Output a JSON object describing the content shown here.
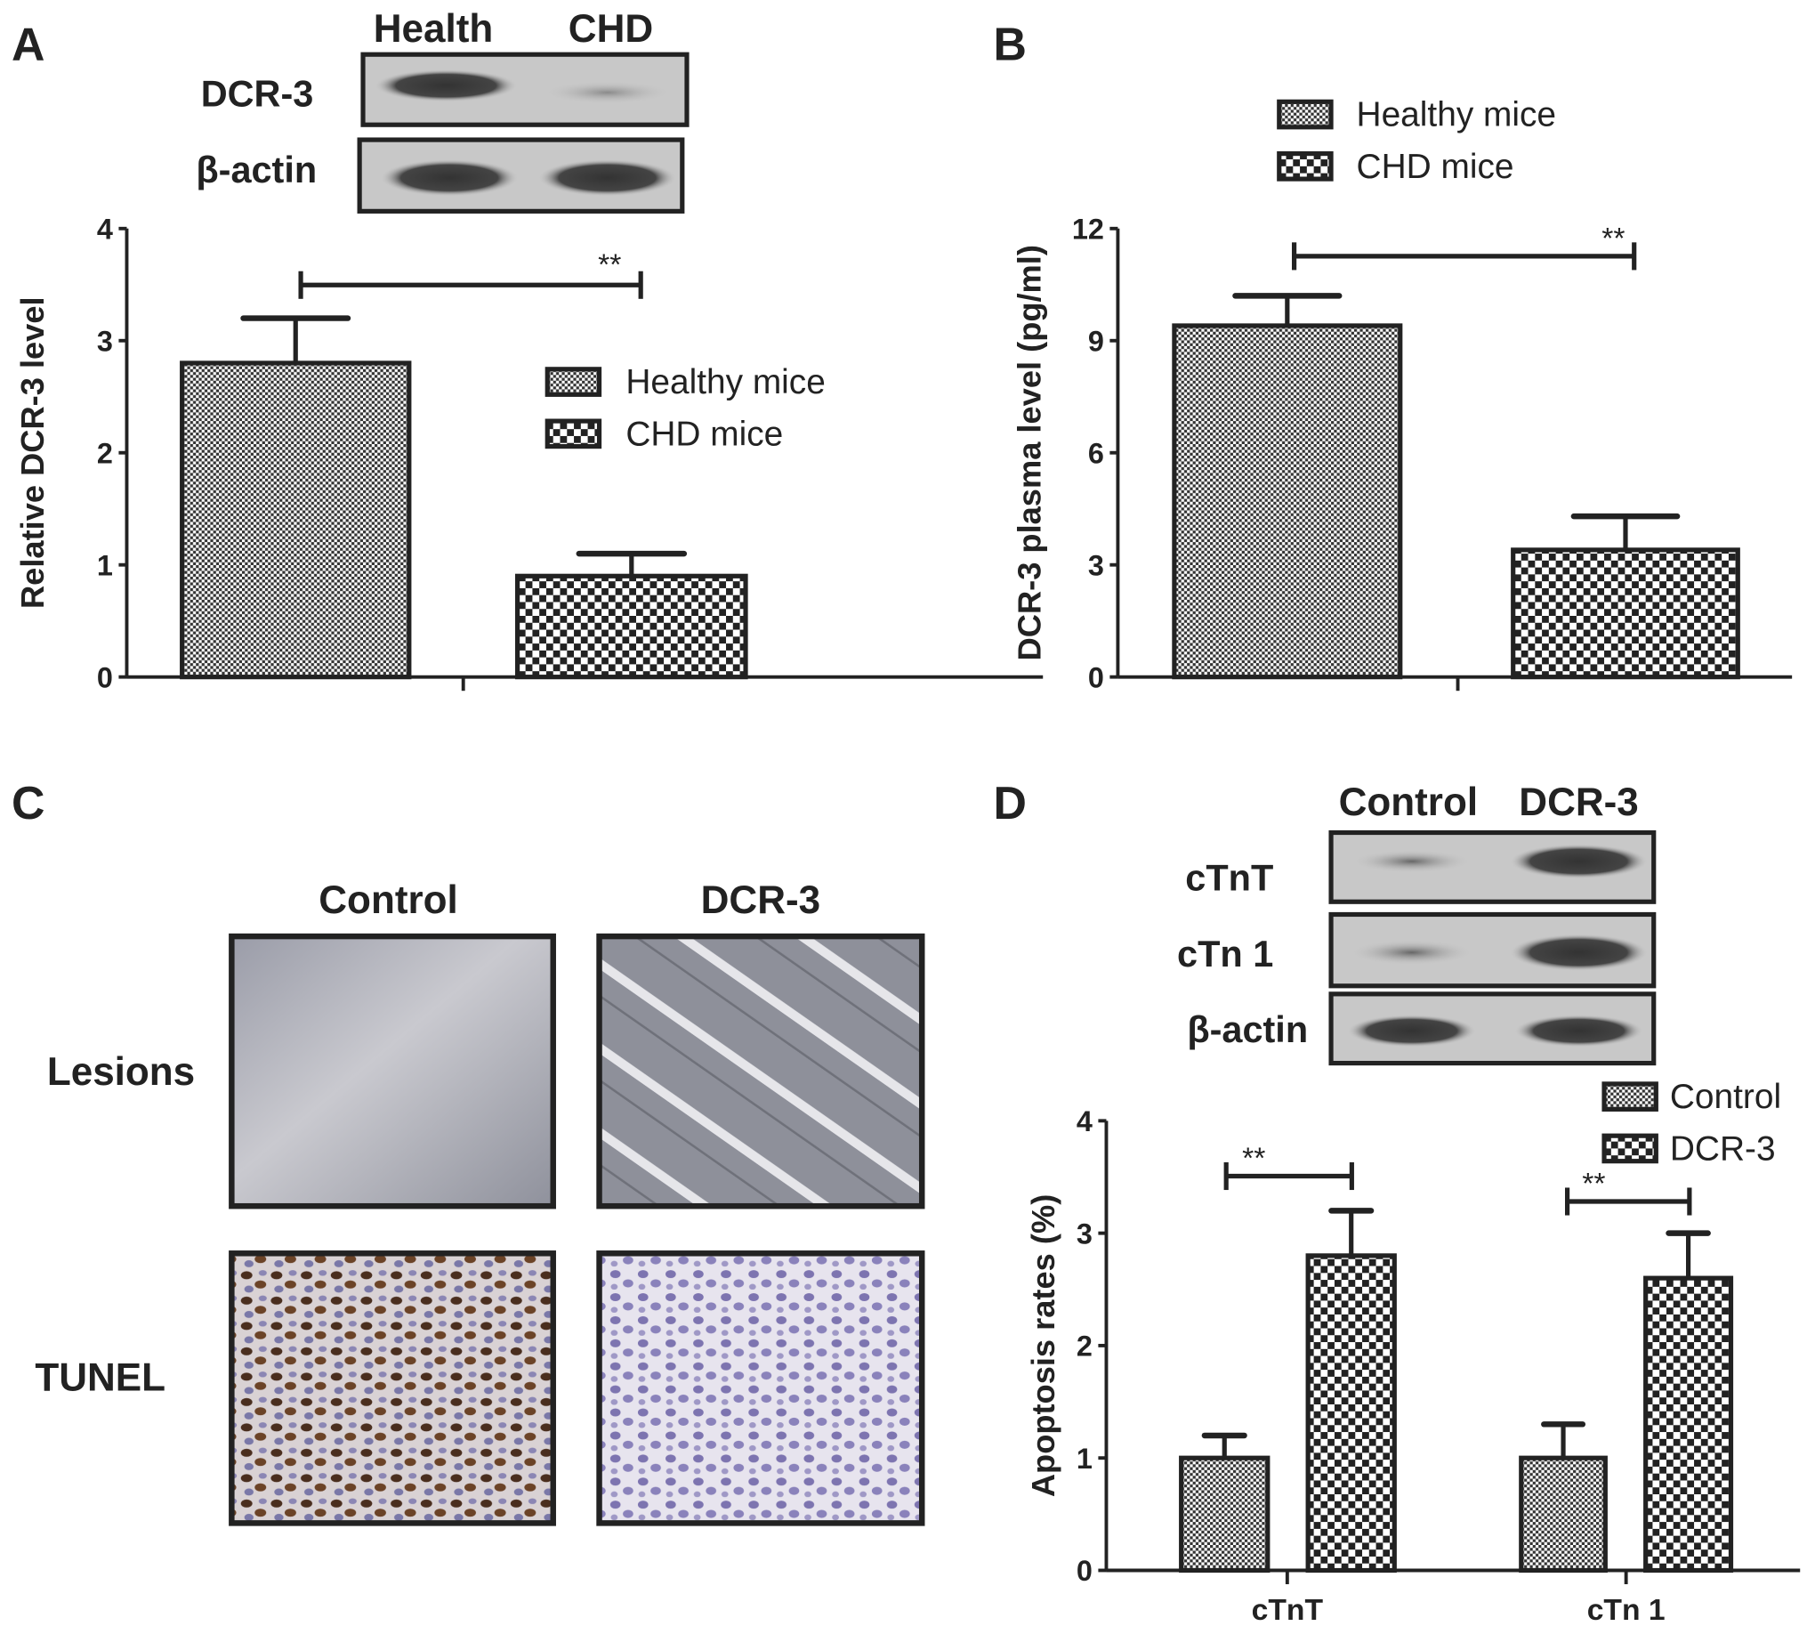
{
  "panels": {
    "A": {
      "label": "A",
      "blot": {
        "lanes": [
          "Health",
          "CHD"
        ],
        "rows": [
          "DCR-3",
          "β-actin"
        ]
      }
    },
    "B": {
      "label": "B"
    },
    "C": {
      "label": "C",
      "columns": [
        "Control",
        "DCR-3"
      ],
      "rows": [
        "Lesions",
        "TUNEL"
      ]
    },
    "D": {
      "label": "D",
      "blot": {
        "lanes": [
          "Control",
          "DCR-3"
        ],
        "rows": [
          "cTnT",
          "cTn 1",
          "β-actin"
        ]
      }
    }
  },
  "colors": {
    "ink": "#222222",
    "blot_bg": "#c8c8c8",
    "band": "#3a3a3a"
  },
  "chart_data": [
    {
      "type": "bar",
      "panel": "A",
      "ylabel": "Relative DCR-3 level",
      "ylim": [
        0,
        4
      ],
      "yticks": [
        "0",
        "1",
        "2",
        "3",
        "4"
      ],
      "categories": [
        ""
      ],
      "series": [
        {
          "name": "Healthy mice",
          "pattern": "fine-dots",
          "values": [
            2.8
          ],
          "error_upper": [
            3.2
          ]
        },
        {
          "name": "CHD mice",
          "pattern": "checker",
          "values": [
            0.9
          ],
          "error_upper": [
            1.1
          ]
        }
      ],
      "significance": [
        {
          "label": "**"
        }
      ],
      "legend": "right-middle",
      "grid": false
    },
    {
      "type": "bar",
      "panel": "B",
      "ylabel": "DCR-3 plasma level (pg/ml)",
      "ylim": [
        0,
        12
      ],
      "yticks": [
        "0",
        "3",
        "6",
        "9",
        "12"
      ],
      "categories": [
        ""
      ],
      "series": [
        {
          "name": "Healthy mice",
          "pattern": "fine-dots",
          "values": [
            9.4
          ],
          "error_upper": [
            10.2
          ]
        },
        {
          "name": "CHD mice",
          "pattern": "checker",
          "values": [
            3.4
          ],
          "error_upper": [
            4.3
          ]
        }
      ],
      "significance": [
        {
          "label": "**"
        }
      ],
      "legend": "top-left",
      "grid": false
    },
    {
      "type": "bar",
      "panel": "D",
      "ylabel": "Apoptosis rates (%)",
      "ylim": [
        0,
        4
      ],
      "yticks": [
        "0",
        "1",
        "2",
        "3",
        "4"
      ],
      "categories": [
        "cTnT",
        "cTn 1"
      ],
      "series": [
        {
          "name": "Control",
          "pattern": "fine-dots",
          "values": [
            1.0,
            1.0
          ],
          "error_upper": [
            1.2,
            1.3
          ]
        },
        {
          "name": "DCR-3",
          "pattern": "checker",
          "values": [
            2.8,
            2.6
          ],
          "error_upper": [
            3.2,
            3.0
          ]
        }
      ],
      "significance": [
        {
          "label": "**"
        },
        {
          "label": "**"
        }
      ],
      "legend": "top-right",
      "grid": false
    }
  ]
}
